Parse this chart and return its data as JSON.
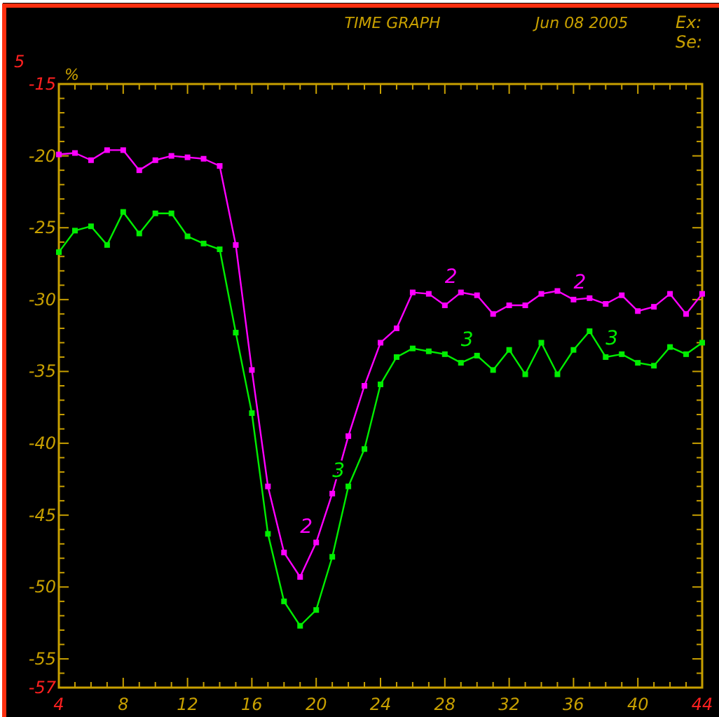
{
  "chart_data": {
    "type": "line",
    "title": "TIME GRAPH",
    "subtitle": "Jun 08 2005",
    "ylabel": "%",
    "marker": "square",
    "grid": false,
    "x": [
      4,
      5,
      6,
      7,
      8,
      9,
      10,
      11,
      12,
      13,
      14,
      15,
      16,
      17,
      18,
      19,
      20,
      21,
      22,
      23,
      24,
      25,
      26,
      27,
      28,
      29,
      30,
      31,
      32,
      33,
      34,
      35,
      36,
      37,
      38,
      39,
      40,
      41,
      42,
      43,
      44
    ],
    "series": [
      {
        "color": "#ff00ff",
        "values": [
          -19.9,
          -19.8,
          -20.3,
          -19.6,
          -19.6,
          -21.0,
          -20.3,
          -20.0,
          -20.1,
          -20.2,
          -20.7,
          -26.2,
          -34.9,
          -43.0,
          -47.6,
          -49.3,
          -46.9,
          -43.5,
          -39.5,
          -36.0,
          -33.0,
          -32.0,
          -29.5,
          -29.6,
          -30.4,
          -29.5,
          -29.7,
          -31.0,
          -30.4,
          -30.4,
          -29.6,
          -29.4,
          -30.0,
          -29.9,
          -30.3,
          -29.7,
          -30.8,
          -30.5,
          -29.6,
          -31.0,
          -29.6
        ]
      },
      {
        "color": "#00ee00",
        "values": [
          -26.7,
          -25.2,
          -24.9,
          -26.2,
          -23.9,
          -25.4,
          -24.0,
          -24.0,
          -25.6,
          -26.1,
          -26.5,
          -32.3,
          -37.9,
          -46.3,
          -51.0,
          -52.7,
          -51.6,
          -47.9,
          -43.0,
          -40.4,
          -35.9,
          -34.0,
          -33.4,
          -33.6,
          -33.8,
          -34.4,
          -33.9,
          -34.9,
          -33.5,
          -35.2,
          -33.0,
          -35.2,
          -33.5,
          -32.2,
          -34.0,
          -33.8,
          -34.4,
          -34.6,
          -33.3,
          -33.8,
          -33.0
        ]
      }
    ],
    "xlim": [
      4,
      44
    ],
    "ylim": [
      -57,
      -15
    ],
    "xticks": [
      4,
      {
        "value": 5,
        "label": null
      },
      {
        "value": 6,
        "label": null
      },
      {
        "value": 7,
        "label": null
      },
      8,
      {
        "value": 9,
        "label": null
      },
      {
        "value": 10,
        "label": null
      },
      {
        "value": 11,
        "label": null
      },
      12,
      {
        "value": 13,
        "label": null
      },
      {
        "value": 14,
        "label": null
      },
      {
        "value": 15,
        "label": null
      },
      16,
      {
        "value": 17,
        "label": null
      },
      {
        "value": 18,
        "label": null
      },
      {
        "value": 19,
        "label": null
      },
      20,
      {
        "value": 21,
        "label": null
      },
      {
        "value": 22,
        "label": null
      },
      {
        "value": 23,
        "label": null
      },
      24,
      {
        "value": 25,
        "label": null
      },
      {
        "value": 26,
        "label": null
      },
      {
        "value": 27,
        "label": null
      },
      28,
      {
        "value": 29,
        "label": null
      },
      {
        "value": 30,
        "label": null
      },
      {
        "value": 31,
        "label": null
      },
      32,
      {
        "value": 33,
        "label": null
      },
      {
        "value": 34,
        "label": null
      },
      {
        "value": 35,
        "label": null
      },
      36,
      {
        "value": 37,
        "label": null
      },
      {
        "value": 38,
        "label": null
      },
      {
        "value": 39,
        "label": null
      },
      40,
      {
        "value": 41,
        "label": null
      },
      {
        "value": 42,
        "label": null
      },
      {
        "value": 43,
        "label": null
      },
      44
    ],
    "yticks": [
      -15,
      {
        "value": -16,
        "label": null
      },
      {
        "value": -17,
        "label": null
      },
      {
        "value": -18,
        "label": null
      },
      {
        "value": -19,
        "label": null
      },
      -20,
      {
        "value": -21,
        "label": null
      },
      {
        "value": -22,
        "label": null
      },
      {
        "value": -23,
        "label": null
      },
      {
        "value": -24,
        "label": null
      },
      -25,
      {
        "value": -26,
        "label": null
      },
      {
        "value": -27,
        "label": null
      },
      {
        "value": -28,
        "label": null
      },
      {
        "value": -29,
        "label": null
      },
      -30,
      {
        "value": -31,
        "label": null
      },
      {
        "value": -32,
        "label": null
      },
      {
        "value": -33,
        "label": null
      },
      {
        "value": -34,
        "label": null
      },
      -35,
      {
        "value": -36,
        "label": null
      },
      {
        "value": -37,
        "label": null
      },
      {
        "value": -38,
        "label": null
      },
      {
        "value": -39,
        "label": null
      },
      -40,
      {
        "value": -41,
        "label": null
      },
      {
        "value": -42,
        "label": null
      },
      {
        "value": -43,
        "label": null
      },
      {
        "value": -44,
        "label": null
      },
      -45,
      {
        "value": -46,
        "label": null
      },
      {
        "value": -47,
        "label": null
      },
      {
        "value": -48,
        "label": null
      },
      {
        "value": -49,
        "label": null
      },
      -50,
      {
        "value": -51,
        "label": null
      },
      {
        "value": -52,
        "label": null
      },
      {
        "value": -53,
        "label": null
      },
      {
        "value": -54,
        "label": null
      },
      -55,
      {
        "value": -56,
        "label": null
      },
      -57
    ],
    "annotations": [
      "5",
      "Ex:",
      "Se:",
      {
        "text": "2",
        "x": 20,
        "y": -46.9
      },
      {
        "text": "2",
        "x": 29,
        "y": -29.5
      },
      {
        "text": "2",
        "x": 37,
        "y": -29.9
      },
      {
        "text": "3",
        "x": 22,
        "y": -43.0
      },
      {
        "text": "3",
        "x": 30,
        "y": -33.9
      },
      {
        "text": "3",
        "x": 39,
        "y": -33.8
      }
    ]
  }
}
